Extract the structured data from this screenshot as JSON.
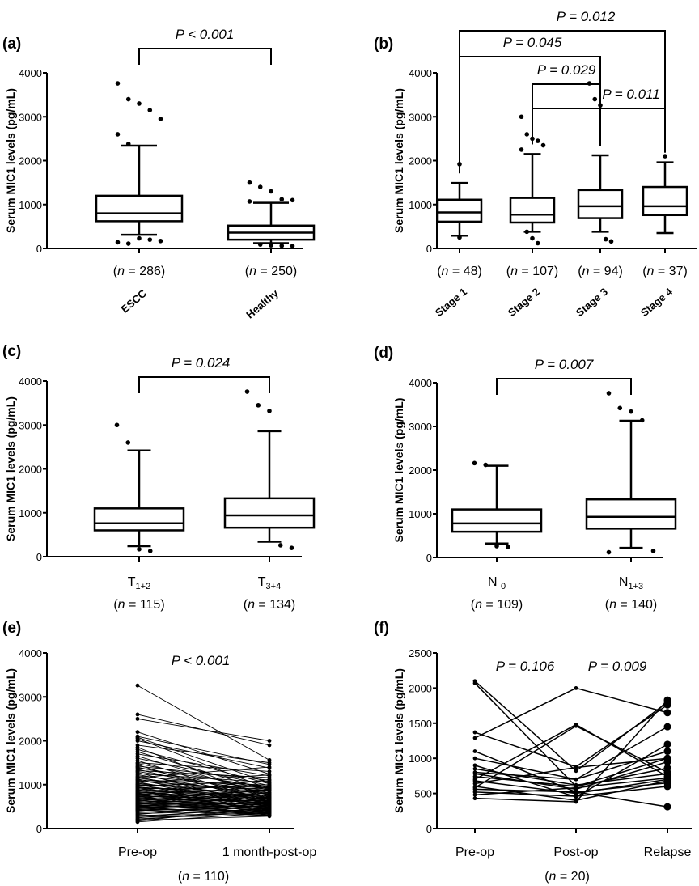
{
  "chart_data": [
    {
      "panel": "(a)",
      "type": "box",
      "ylabel": "Serum MIC1 levels (pg/mL)",
      "ylim": [
        0,
        4000
      ],
      "yticks": [
        0,
        1000,
        2000,
        3000,
        4000
      ],
      "groups": [
        {
          "label": "ESCC",
          "n_label": "(n = 286)",
          "whisker_low": 310,
          "q1": 620,
          "median": 800,
          "q3": 1200,
          "whisker_high": 2340,
          "outliers": [
            3760,
            3400,
            3300,
            3150,
            2950,
            2600,
            2380,
            230,
            200,
            170,
            140,
            110
          ]
        },
        {
          "label": "Healthy",
          "n_label": "(n = 250)",
          "whisker_low": 120,
          "q1": 200,
          "median": 360,
          "q3": 520,
          "whisker_high": 1040,
          "outliers": [
            1500,
            1400,
            1300,
            1120,
            1100,
            1070,
            90,
            70,
            60,
            55
          ]
        }
      ],
      "comparisons": [
        {
          "from": 0,
          "to": 1,
          "label": "P < 0.001"
        }
      ]
    },
    {
      "panel": "(b)",
      "type": "box",
      "ylabel": "Serum MIC1 levels (pg/mL)",
      "ylim": [
        0,
        4000
      ],
      "yticks": [
        0,
        1000,
        2000,
        3000,
        4000
      ],
      "groups": [
        {
          "label": "Stage 1",
          "n_label": "(n = 48)",
          "whisker_low": 290,
          "q1": 610,
          "median": 820,
          "q3": 1110,
          "whisker_high": 1490,
          "outliers": [
            1920,
            250
          ]
        },
        {
          "label": "Stage 2",
          "n_label": "(n = 107)",
          "whisker_low": 380,
          "q1": 590,
          "median": 770,
          "q3": 1150,
          "whisker_high": 2150,
          "outliers": [
            3000,
            2600,
            2500,
            2450,
            2350,
            2250,
            380,
            230,
            120
          ]
        },
        {
          "label": "Stage 3",
          "n_label": "(n = 94)",
          "whisker_low": 380,
          "q1": 690,
          "median": 960,
          "q3": 1330,
          "whisker_high": 2120,
          "outliers": [
            3760,
            3400,
            3260,
            210,
            160
          ]
        },
        {
          "label": "Stage 4",
          "n_label": "(n = 37)",
          "whisker_low": 350,
          "q1": 760,
          "median": 960,
          "q3": 1400,
          "whisker_high": 1960,
          "outliers": [
            2100
          ]
        }
      ],
      "comparisons": [
        {
          "from": 0,
          "to": 3,
          "label": "P = 0.012"
        },
        {
          "from": 0,
          "to": 2,
          "label": "P = 0.045"
        },
        {
          "from": 1,
          "to": 2,
          "label": "P = 0.029"
        },
        {
          "from": 1,
          "to": 3,
          "label": "P = 0.011"
        }
      ]
    },
    {
      "panel": "(c)",
      "type": "box",
      "ylabel": "Serum MIC1 levels (pg/mL)",
      "ylim": [
        0,
        4000
      ],
      "yticks": [
        0,
        1000,
        2000,
        3000,
        4000
      ],
      "groups": [
        {
          "label": "T",
          "label_sub": "1+2",
          "n_label": "(n = 115)",
          "whisker_low": 240,
          "q1": 600,
          "median": 760,
          "q3": 1100,
          "whisker_high": 2420,
          "outliers": [
            3000,
            2600,
            170,
            130
          ]
        },
        {
          "label": "T",
          "label_sub": "3+4",
          "n_label": "(n = 134)",
          "whisker_low": 340,
          "q1": 660,
          "median": 940,
          "q3": 1330,
          "whisker_high": 2860,
          "outliers": [
            3760,
            3450,
            3320,
            260,
            200
          ]
        }
      ],
      "comparisons": [
        {
          "from": 0,
          "to": 1,
          "label": "P = 0.024"
        }
      ]
    },
    {
      "panel": "(d)",
      "type": "box",
      "ylabel": "Serum MIC1 levels (pg/mL)",
      "ylim": [
        0,
        4000
      ],
      "yticks": [
        0,
        1000,
        2000,
        3000,
        4000
      ],
      "groups": [
        {
          "label": "N",
          "label_sub": "0",
          "n_label": "(n = 109)",
          "whisker_low": 320,
          "q1": 590,
          "median": 780,
          "q3": 1100,
          "whisker_high": 2100,
          "outliers": [
            2160,
            2120,
            260,
            240
          ]
        },
        {
          "label": "N",
          "label_sub": "1+3",
          "n_label": "(n = 140)",
          "whisker_low": 220,
          "q1": 660,
          "median": 930,
          "q3": 1330,
          "whisker_high": 3130,
          "outliers": [
            3760,
            3420,
            3340,
            3140,
            150,
            120
          ]
        }
      ],
      "comparisons": [
        {
          "from": 0,
          "to": 1,
          "label": "P = 0.007"
        }
      ]
    },
    {
      "panel": "(e)",
      "type": "line",
      "ylabel": "Serum MIC1 levels (pg/mL)",
      "ylim": [
        0,
        4000
      ],
      "yticks": [
        0,
        1000,
        2000,
        3000,
        4000
      ],
      "x": [
        "Pre-op",
        "1 month-post-op"
      ],
      "n_label": "(n = 110)",
      "p_label": "P < 0.001",
      "paired_series": [
        [
          3260,
          1560
        ],
        [
          2600,
          1900
        ],
        [
          2500,
          2000
        ],
        [
          2200,
          1240
        ],
        [
          2100,
          1460
        ],
        [
          2080,
          1040
        ],
        [
          2050,
          900
        ],
        [
          2000,
          1380
        ],
        [
          1900,
          1500
        ],
        [
          1850,
          680
        ],
        [
          1800,
          1020
        ],
        [
          1750,
          860
        ],
        [
          1700,
          1200
        ],
        [
          1650,
          760
        ],
        [
          1600,
          980
        ],
        [
          1550,
          600
        ],
        [
          1500,
          1300
        ],
        [
          1480,
          880
        ],
        [
          1450,
          540
        ],
        [
          1420,
          1100
        ],
        [
          1400,
          720
        ],
        [
          1380,
          940
        ],
        [
          1350,
          650
        ],
        [
          1320,
          1160
        ],
        [
          1300,
          820
        ],
        [
          1280,
          480
        ],
        [
          1250,
          1050
        ],
        [
          1230,
          700
        ],
        [
          1200,
          920
        ],
        [
          1180,
          560
        ],
        [
          1160,
          1400
        ],
        [
          1150,
          780
        ],
        [
          1130,
          440
        ],
        [
          1110,
          990
        ],
        [
          1100,
          640
        ],
        [
          1080,
          860
        ],
        [
          1060,
          520
        ],
        [
          1050,
          1220
        ],
        [
          1030,
          740
        ],
        [
          1010,
          380
        ],
        [
          1000,
          900
        ],
        [
          990,
          600
        ],
        [
          970,
          1080
        ],
        [
          950,
          700
        ],
        [
          940,
          460
        ],
        [
          930,
          820
        ],
        [
          910,
          560
        ],
        [
          900,
          960
        ],
        [
          880,
          680
        ],
        [
          870,
          400
        ],
        [
          860,
          760
        ],
        [
          850,
          1000
        ],
        [
          840,
          540
        ],
        [
          830,
          640
        ],
        [
          820,
          880
        ],
        [
          810,
          420
        ],
        [
          800,
          720
        ],
        [
          790,
          580
        ],
        [
          780,
          940
        ],
        [
          770,
          460
        ],
        [
          760,
          800
        ],
        [
          750,
          620
        ],
        [
          740,
          360
        ],
        [
          730,
          700
        ],
        [
          720,
          1120
        ],
        [
          710,
          520
        ],
        [
          700,
          860
        ],
        [
          690,
          600
        ],
        [
          680,
          440
        ],
        [
          670,
          760
        ],
        [
          660,
          300
        ],
        [
          650,
          680
        ],
        [
          640,
          540
        ],
        [
          630,
          920
        ],
        [
          620,
          400
        ],
        [
          610,
          640
        ],
        [
          600,
          780
        ],
        [
          590,
          480
        ],
        [
          580,
          340
        ],
        [
          570,
          700
        ],
        [
          560,
          560
        ],
        [
          550,
          820
        ],
        [
          540,
          420
        ],
        [
          530,
          600
        ],
        [
          520,
          500
        ],
        [
          510,
          380
        ],
        [
          500,
          720
        ],
        [
          490,
          460
        ],
        [
          480,
          600
        ],
        [
          470,
          320
        ],
        [
          460,
          520
        ],
        [
          450,
          680
        ],
        [
          440,
          400
        ],
        [
          430,
          560
        ],
        [
          420,
          300
        ],
        [
          410,
          480
        ],
        [
          400,
          640
        ],
        [
          380,
          360
        ],
        [
          360,
          520
        ],
        [
          340,
          420
        ],
        [
          320,
          580
        ],
        [
          300,
          340
        ],
        [
          280,
          460
        ],
        [
          260,
          300
        ],
        [
          240,
          540
        ],
        [
          220,
          380
        ],
        [
          200,
          440
        ],
        [
          190,
          280
        ],
        [
          170,
          500
        ],
        [
          150,
          360
        ]
      ]
    },
    {
      "panel": "(f)",
      "type": "line",
      "ylabel": "Serum MIC1 levels (pg/mL)",
      "ylim": [
        0,
        2500
      ],
      "yticks": [
        0,
        500,
        1000,
        1500,
        2000,
        2500
      ],
      "x": [
        "Pre-op",
        "Post-op",
        "Relapse"
      ],
      "n_label": "(n = 20)",
      "p_labels": [
        "P = 0.106",
        "P = 0.009"
      ],
      "paired_series": [
        [
          2100,
          820,
          1800
        ],
        [
          2070,
          600,
          1000
        ],
        [
          1370,
          880,
          1760
        ],
        [
          1290,
          2000,
          1650
        ],
        [
          1100,
          520,
          310
        ],
        [
          1000,
          700,
          1450
        ],
        [
          900,
          450,
          1200
        ],
        [
          850,
          620,
          780
        ],
        [
          800,
          700,
          1100
        ],
        [
          780,
          560,
          950
        ],
        [
          740,
          600,
          860
        ],
        [
          700,
          1480,
          740
        ],
        [
          680,
          500,
          700
        ],
        [
          640,
          870,
          1000
        ],
        [
          600,
          400,
          680
        ],
        [
          580,
          1460,
          800
        ],
        [
          560,
          520,
          650
        ],
        [
          520,
          460,
          600
        ],
        [
          480,
          580,
          720
        ],
        [
          430,
          380,
          1830
        ]
      ]
    }
  ]
}
